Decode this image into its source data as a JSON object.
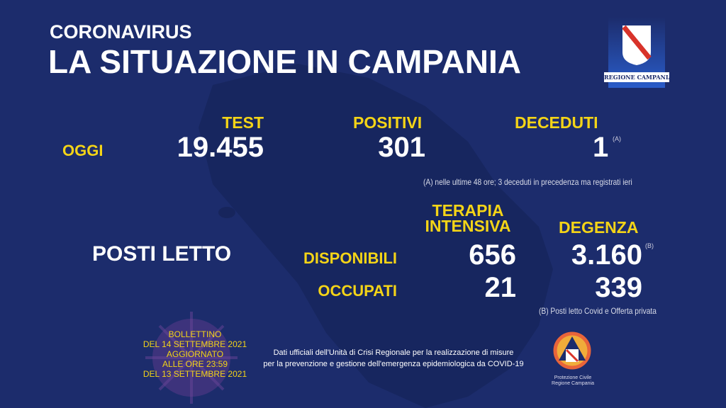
{
  "header": {
    "kicker": "CORONAVIRUS",
    "title": "LA SITUAZIONE IN CAMPANIA"
  },
  "logo": {
    "text": "REGIONE CAMPANIA"
  },
  "today": {
    "label": "OGGI",
    "test_label": "TEST",
    "test": "19.455",
    "positivi_label": "POSITIVI",
    "positivi": "301",
    "deceduti_label": "DECEDUTI",
    "deceduti": "1",
    "deceduti_mark": "(A)",
    "note_a": "(A) nelle ultime 48 ore; 3 deceduti in precedenza ma registrati ieri"
  },
  "beds": {
    "label": "POSTI LETTO",
    "ti_label_1": "TERAPIA",
    "ti_label_2": "INTENSIVA",
    "deg_label": "DEGENZA",
    "disp_label": "DISPONIBILI",
    "occ_label": "OCCUPATI",
    "ti_disp": "656",
    "ti_occ": "21",
    "deg_disp": "3.160",
    "deg_mark": "(B)",
    "deg_occ": "339",
    "note_b": "(B) Posti letto Covid e Offerta privata"
  },
  "bulletin": {
    "lines": [
      "BOLLETTINO",
      "DEL 14  SETTEMBRE 2021",
      "AGGIORNATO",
      "ALLE ORE 23:59",
      "DEL 13 SETTEMBRE 2021"
    ]
  },
  "footer": {
    "line1": "Dati ufficiali dell'Unità di Crisi Regionale per la realizzazione di misure",
    "line2": "per la prevenzione e gestione dell'emergenza epidemiologica da COVID-19"
  },
  "protezione": {
    "line1": "Protezione Civile",
    "line2": "Regione Campania"
  },
  "colors": {
    "background": "#1c2c6c",
    "accent": "#f4d417"
  }
}
